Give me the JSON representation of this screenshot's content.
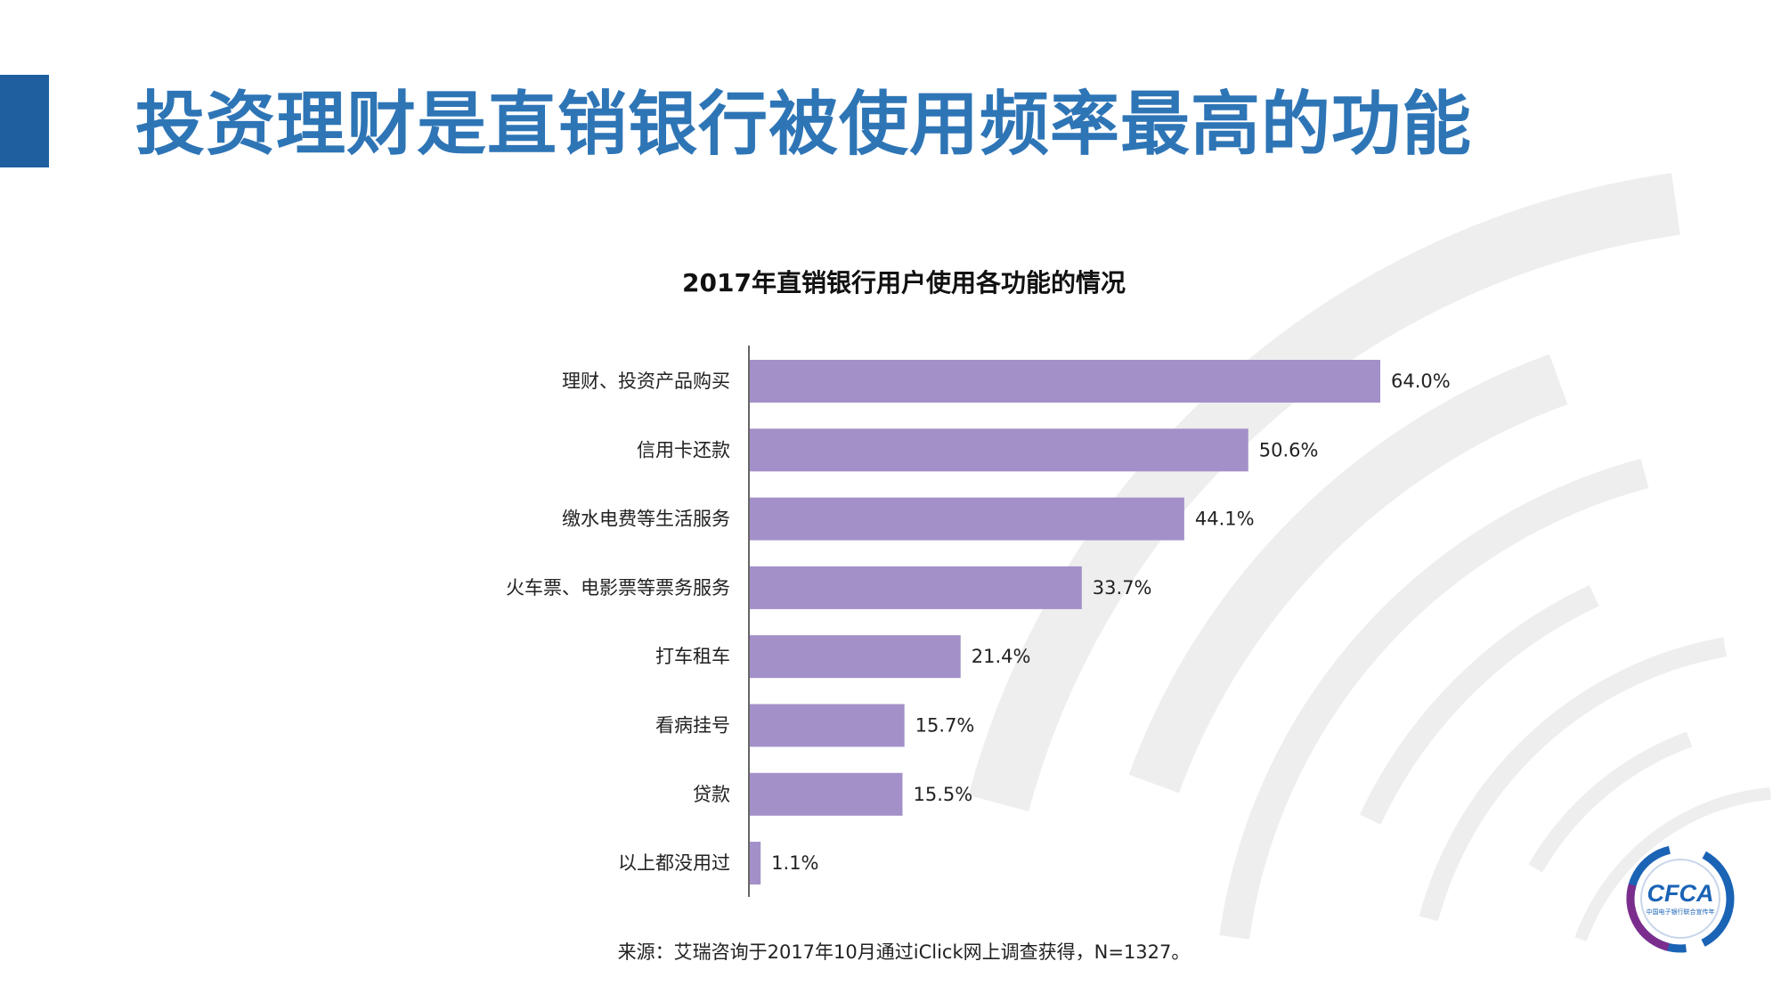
{
  "slide": {
    "title": "投资理财是直销银行被使用频率最高的功能",
    "source_note": "来源：艾瑞咨询于2017年10月通过iClick网上调查获得，N=1327。"
  },
  "logo": {
    "name": "CFCA",
    "subtitle": "中国电子银行联合宣传年"
  },
  "colors": {
    "title": "#2e75b6",
    "accent_bar": "#1f5fa0",
    "bar": "#a390c8",
    "axis": "#333333",
    "deco": "#eeeeee"
  },
  "chart_data": {
    "type": "bar",
    "orientation": "horizontal",
    "title": "2017年直销银行用户使用各功能的情况",
    "categories": [
      "理财、投资产品购买",
      "信用卡还款",
      "缴水电费等生活服务",
      "火车票、电影票等票务服务",
      "打车租车",
      "看病挂号",
      "贷款",
      "以上都没用过"
    ],
    "values": [
      64.0,
      50.6,
      44.1,
      33.7,
      21.4,
      15.7,
      15.5,
      1.1
    ],
    "value_labels": [
      "64.0%",
      "50.6%",
      "44.1%",
      "33.7%",
      "21.4%",
      "15.7%",
      "15.5%",
      "1.1%"
    ],
    "unit": "%",
    "xlim": [
      0,
      64.0
    ],
    "grid": false,
    "legend": "none"
  }
}
